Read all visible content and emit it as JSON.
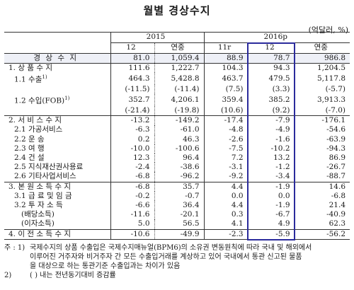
{
  "title": "월별 경상수지",
  "unit": "(억달러, %)",
  "header": {
    "y2015": "2015",
    "y2016": "2016p",
    "cols": [
      "12",
      "연중",
      "11r",
      "12",
      "연중"
    ]
  },
  "rows": [
    {
      "label": "경 상 수 지",
      "vals": [
        "81.0",
        "1,059.4",
        "88.9",
        "78.7",
        "986.8"
      ],
      "indent": 0,
      "shade": true
    },
    {
      "label": "1. 상 품 수 지",
      "vals": [
        "111.6",
        "1,222.7",
        "104.3",
        "94.3",
        "1,204.5"
      ],
      "indent": 1
    },
    {
      "label": "1.1 수출",
      "sup": "1)",
      "vals": [
        "464.3",
        "5,428.8",
        "463.7",
        "479.5",
        "5,117.8"
      ],
      "indent": 2
    },
    {
      "label": "",
      "vals": [
        "(-11.5)",
        "(-11.4)",
        "(7.5)",
        "(3.3)",
        "(-5.7)"
      ],
      "indent": 2
    },
    {
      "label": "1.2 수입(FOB)",
      "sup": "1)",
      "vals": [
        "352.7",
        "4,206.1",
        "359.4",
        "385.2",
        "3,913.3"
      ],
      "indent": 2
    },
    {
      "label": "",
      "vals": [
        "(-21.4)",
        "(-19.8)",
        "(10.6)",
        "(9.2)",
        "(-7.0)"
      ],
      "indent": 2,
      "bb": true
    },
    {
      "label": "2. 서 비 스 수 지",
      "vals": [
        "-13.2",
        "-149.2",
        "-17.4",
        "-7.9",
        "-176.1"
      ],
      "indent": 1
    },
    {
      "label": "2.1 가공서비스",
      "vals": [
        "-6.3",
        "-61.0",
        "-4.8",
        "-4.9",
        "-54.6"
      ],
      "indent": 2
    },
    {
      "label": "2.2 운      송",
      "vals": [
        "0.2",
        "46.3",
        "-2.6",
        "-1.6",
        "-63.9"
      ],
      "indent": 2
    },
    {
      "label": "2.3 여      행",
      "vals": [
        "-10.0",
        "-100.6",
        "-7.5",
        "-10.2",
        "-94.3"
      ],
      "indent": 2
    },
    {
      "label": "2.4 건      설",
      "vals": [
        "12.3",
        "96.4",
        "7.2",
        "13.2",
        "86.9"
      ],
      "indent": 2
    },
    {
      "label": "2.5 지식재산권사용료",
      "vals": [
        "-2.4",
        "-38.6",
        "-3.1",
        "-1.2",
        "-26.7"
      ],
      "indent": 2
    },
    {
      "label": "2.6 기타사업서비스",
      "vals": [
        "-6.8",
        "-96.2",
        "-9.2",
        "-3.4",
        "-88.7"
      ],
      "indent": 2,
      "bb": true
    },
    {
      "label": "3. 본 원 소 득 수 지",
      "vals": [
        "-6.8",
        "35.7",
        "4.4",
        "-1.9",
        "14.6"
      ],
      "indent": 1
    },
    {
      "label": "3.1 급 료 및 임 금",
      "vals": [
        "-0.2",
        "-0.7",
        "0.0",
        "0.0",
        "-6.8"
      ],
      "indent": 2
    },
    {
      "label": "3.2 투  자  소  득",
      "vals": [
        "-6.6",
        "36.4",
        "4.4",
        "-1.9",
        "21.4"
      ],
      "indent": 2
    },
    {
      "label": "(배당소득)",
      "vals": [
        "-11.6",
        "-20.1",
        "0.3",
        "-6.7",
        "-40.9"
      ],
      "indent": 3
    },
    {
      "label": "(이자소득)",
      "vals": [
        "5.0",
        "56.5",
        "4.1",
        "4.9",
        "62.3"
      ],
      "indent": 3,
      "bb": true
    },
    {
      "label": "4. 이 전 소 득 수 지",
      "vals": [
        "-10.6",
        "-49.9",
        "-2.3",
        "-5.9",
        "-56.2"
      ],
      "indent": 1,
      "bb": true
    }
  ],
  "notes": [
    {
      "label": "주 : 1)",
      "text": "국제수지의 상품 수출입은 국제수지매뉴얼(BPM6)의 소유권 변동원칙에 따라 국내 및 해외에서"
    },
    {
      "label": "",
      "text": "이루어진 거주자와 비거주자 간 모든 수출입거래를 계상하고 있어 국내에서 통관 신고된 물품"
    },
    {
      "label": "",
      "text": "을 대상으로 하는 통관기준 수출입과는 차이가 있음"
    },
    {
      "label": "2)",
      "text": "( ) 내는 전년동기대비 증감률"
    }
  ],
  "colors": {
    "highlight": "#2b2b9c",
    "shade": "#eef0f7"
  }
}
